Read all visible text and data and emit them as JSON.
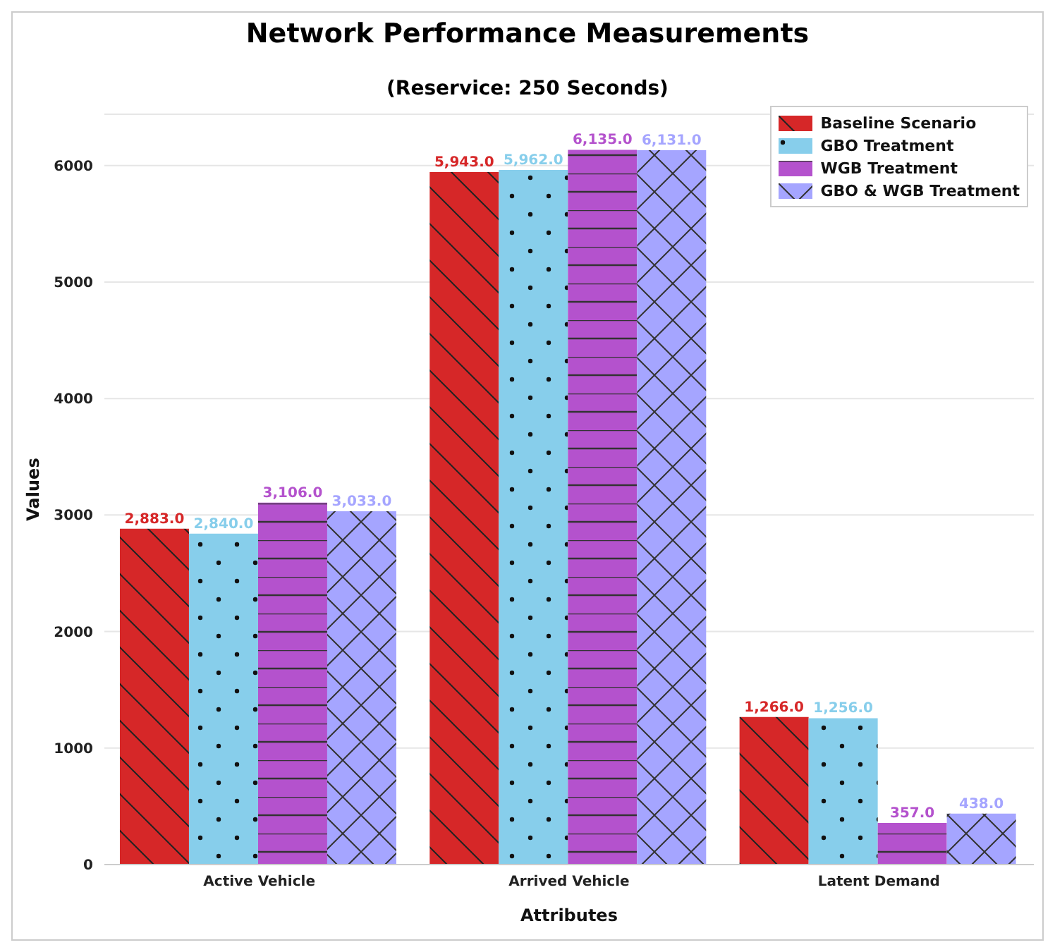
{
  "chart_data": {
    "type": "bar",
    "title": "Network Performance Measurements",
    "subtitle": "(Reservice: 250 Seconds)",
    "xlabel": "Attributes",
    "ylabel": "Values",
    "categories": [
      "Active Vehicle",
      "Arrived Vehicle",
      "Latent Demand"
    ],
    "series": [
      {
        "name": "Baseline Scenario",
        "color": "#d62728",
        "values": [
          2883,
          5943,
          1266
        ],
        "value_labels": [
          "2,883.0",
          "5,943.0",
          "1,266.0"
        ]
      },
      {
        "name": "GBO Treatment",
        "color": "#87ceeb",
        "values": [
          2840,
          5962,
          1256
        ],
        "value_labels": [
          "2,840.0",
          "5,962.0",
          "1,256.0"
        ]
      },
      {
        "name": "WGB Treatment",
        "color": "#b452cd",
        "values": [
          3106,
          6135,
          357
        ],
        "value_labels": [
          "3,106.0",
          "6,135.0",
          "357.0"
        ]
      },
      {
        "name": "GBO & WGB Treatment",
        "color": "#a5a5ff",
        "values": [
          3033,
          6131,
          438
        ],
        "value_labels": [
          "3,033.0",
          "6,131.0",
          "438.0"
        ]
      }
    ],
    "ylim": [
      0,
      6440
    ],
    "yticks": [
      0,
      1000,
      2000,
      3000,
      4000,
      5000,
      6000
    ],
    "grid": "y",
    "legend": "top right"
  }
}
